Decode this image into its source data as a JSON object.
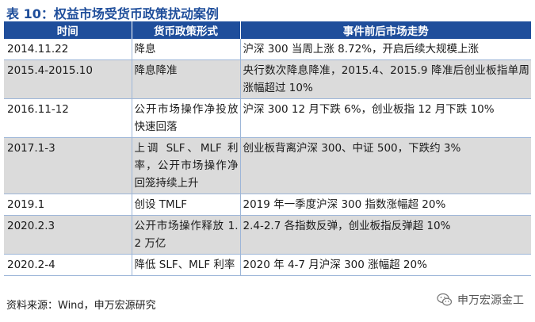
{
  "title": "表 10：权益市场受货币政策扰动案例",
  "table": {
    "headers": [
      "时间",
      "货币政策形式",
      "事件前后市场走势"
    ],
    "rows": [
      {
        "time": "2014.11.22",
        "policy": "降息",
        "market": "沪深 300 当周上涨 8.72%，开启后续大规模上涨"
      },
      {
        "time": "2015.4-2015.10",
        "policy": "降息降准",
        "market": "央行数次降息降准，2015.4、2015.9 降准后创业板指单周涨幅超过 10%"
      },
      {
        "time": "2016.11-12",
        "policy": "公开市场操作净投放快速回落",
        "market": "沪深 300 12 月下跌 6%，创业板指 12 月下跌 10%"
      },
      {
        "time": "2017.1-3",
        "policy": "上调 SLF、MLF 利率，公开市场操作净回笼持续上升",
        "market": "创业板背离沪深 300、中证 500，下跌约 3%"
      },
      {
        "time": "2019.1",
        "policy": "创设 TMLF",
        "market": "2019 年一季度沪深 300 指数涨幅超 20%"
      },
      {
        "time": "2020.2.3",
        "policy": "公开市场操作释放 1.2 万亿",
        "market": "2.4-2.7 各指数反弹，创业板指反弹超 10%"
      },
      {
        "time": "2020.2-4",
        "policy": "降低 SLF、MLF 利率",
        "market": "2020 年 4-7 月沪深 300 涨幅超 20%"
      }
    ]
  },
  "source": "资料来源：Wind，申万宏源研究",
  "watermark": "申万宏源金工",
  "colors": {
    "accent": "#1f4e9b",
    "row_alt": "#dbdbdb"
  }
}
